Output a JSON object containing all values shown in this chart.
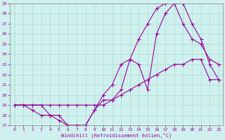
{
  "xlabel": "Windchill (Refroidissement éolien,°C)",
  "background_color": "#cff0ee",
  "grid_color": "#aaddcc",
  "line_color": "#990099",
  "xlim": [
    -0.5,
    23.5
  ],
  "ylim": [
    17,
    29
  ],
  "yticks": [
    17,
    18,
    19,
    20,
    21,
    22,
    23,
    24,
    25,
    26,
    27,
    28,
    29
  ],
  "xticks": [
    0,
    1,
    2,
    3,
    4,
    5,
    6,
    7,
    8,
    9,
    10,
    11,
    12,
    13,
    14,
    15,
    16,
    17,
    18,
    19,
    20,
    21,
    22,
    23
  ],
  "line1_x": [
    0,
    1,
    2,
    3,
    4,
    5,
    6,
    7,
    8,
    9,
    10,
    11,
    12,
    13,
    14,
    15,
    16,
    17,
    18,
    19,
    20,
    21,
    22,
    23
  ],
  "line1_y": [
    19,
    19,
    18.5,
    18,
    18,
    17.5,
    17,
    17,
    17,
    18.5,
    19.5,
    19.5,
    20.5,
    23.5,
    23.0,
    20.5,
    26.0,
    28.0,
    29,
    29,
    27,
    25.5,
    23,
    21.5
  ],
  "line2_x": [
    0,
    1,
    2,
    3,
    4,
    5,
    6,
    7,
    8,
    9,
    10,
    11,
    12,
    13,
    14,
    15,
    16,
    17,
    18,
    19,
    20,
    21,
    22,
    23
  ],
  "line2_y": [
    19,
    19,
    19,
    19,
    19,
    19,
    19,
    19,
    19,
    19,
    19,
    19.5,
    20,
    20.5,
    21,
    21.5,
    22,
    22.5,
    23,
    23,
    23.5,
    23.5,
    21.5,
    21.5
  ],
  "line3_x": [
    0,
    1,
    2,
    3,
    4,
    5,
    6,
    7,
    8,
    9,
    10,
    11,
    12,
    13,
    14,
    15,
    16,
    17,
    18,
    19,
    20,
    21,
    22,
    23
  ],
  "line3_y": [
    19,
    19,
    19,
    19,
    18,
    18,
    17,
    17,
    17,
    18.5,
    20,
    21,
    23,
    23.5,
    25.5,
    27,
    28.5,
    29,
    29,
    27,
    25.5,
    25,
    23.5,
    23
  ]
}
